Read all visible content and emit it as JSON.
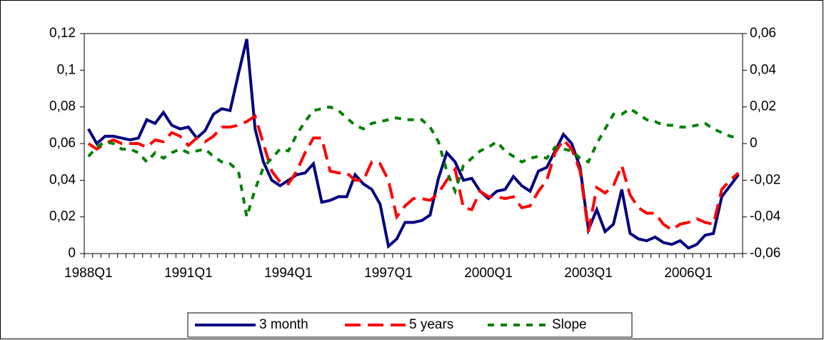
{
  "chart_data": {
    "type": "line",
    "categories": [
      "1988Q1",
      null,
      null,
      null,
      null,
      null,
      null,
      null,
      null,
      null,
      null,
      null,
      "1991Q1",
      null,
      null,
      null,
      null,
      null,
      null,
      null,
      null,
      null,
      null,
      null,
      "1994Q1",
      null,
      null,
      null,
      null,
      null,
      null,
      null,
      null,
      null,
      null,
      null,
      "1997Q1",
      null,
      null,
      null,
      null,
      null,
      null,
      null,
      null,
      null,
      null,
      null,
      "2000Q1",
      null,
      null,
      null,
      null,
      null,
      null,
      null,
      null,
      null,
      null,
      null,
      "2003Q1",
      null,
      null,
      null,
      null,
      null,
      null,
      null,
      null,
      null,
      null,
      null,
      "2006Q1",
      null,
      null,
      null,
      null,
      null,
      null
    ],
    "series": [
      {
        "name": "3 month",
        "color": "#000080",
        "dash": "solid",
        "values": [
          0.068,
          0.06,
          0.064,
          0.064,
          0.063,
          0.062,
          0.063,
          0.073,
          0.071,
          0.077,
          0.07,
          0.068,
          0.069,
          0.063,
          0.067,
          0.076,
          0.079,
          0.078,
          0.098,
          0.117,
          0.068,
          0.05,
          0.04,
          0.037,
          0.04,
          0.043,
          0.044,
          0.049,
          0.028,
          0.029,
          0.031,
          0.031,
          0.043,
          0.038,
          0.035,
          0.027,
          0.004,
          0.008,
          0.017,
          0.017,
          0.018,
          0.021,
          0.041,
          0.055,
          0.05,
          0.04,
          0.041,
          0.034,
          0.03,
          0.034,
          0.035,
          0.042,
          0.037,
          0.034,
          0.045,
          0.047,
          0.056,
          0.065,
          0.06,
          0.047,
          0.013,
          0.024,
          0.012,
          0.016,
          0.035,
          0.011,
          0.008,
          0.007,
          0.009,
          0.006,
          0.005,
          0.007,
          0.003,
          0.005,
          0.01,
          0.011,
          0.031,
          0.037,
          0.043
        ]
      },
      {
        "name": "5 years",
        "color": "#ff0000",
        "dash": "long",
        "values": [
          0.06,
          0.057,
          0.06,
          0.062,
          0.06,
          0.06,
          0.06,
          0.058,
          0.062,
          0.061,
          0.066,
          0.064,
          0.059,
          0.063,
          0.061,
          0.064,
          0.069,
          0.069,
          0.07,
          0.072,
          0.075,
          0.06,
          0.045,
          0.039,
          0.038,
          0.045,
          0.055,
          0.063,
          0.063,
          0.045,
          0.044,
          0.044,
          0.04,
          0.04,
          0.05,
          0.049,
          0.04,
          0.02,
          0.026,
          0.03,
          0.03,
          0.029,
          0.033,
          0.04,
          0.046,
          0.025,
          0.024,
          0.034,
          0.031,
          0.031,
          0.03,
          0.031,
          0.025,
          0.026,
          0.034,
          0.04,
          0.055,
          0.062,
          0.057,
          0.045,
          0.012,
          0.036,
          0.033,
          0.037,
          0.048,
          0.032,
          0.025,
          0.022,
          0.022,
          0.016,
          0.013,
          0.016,
          0.017,
          0.019,
          0.017,
          0.016,
          0.035,
          0.04,
          0.044
        ]
      },
      {
        "name": "Slope",
        "color": "#008000",
        "dash": "short",
        "axis": "y2",
        "values": [
          -0.007,
          -0.002,
          0.001,
          0,
          -0.003,
          -0.003,
          -0.005,
          -0.01,
          -0.005,
          -0.008,
          -0.005,
          -0.003,
          -0.005,
          -0.004,
          -0.003,
          -0.007,
          -0.01,
          -0.011,
          -0.015,
          -0.04,
          -0.025,
          -0.013,
          -0.008,
          -0.003,
          -0.004,
          0.005,
          0.012,
          0.018,
          0.019,
          0.02,
          0.018,
          0.014,
          0.01,
          0.008,
          0.011,
          0.012,
          0.013,
          0.014,
          0.013,
          0.013,
          0.013,
          0.009,
          0.001,
          -0.015,
          -0.026,
          -0.012,
          -0.008,
          -0.004,
          -0.002,
          0.001,
          -0.004,
          -0.007,
          -0.01,
          -0.008,
          -0.007,
          -0.008,
          -0.002,
          -0.003,
          -0.004,
          -0.008,
          -0.01,
          0,
          0.008,
          0.016,
          0.016,
          0.019,
          0.016,
          0.013,
          0.012,
          0.01,
          0.01,
          0.009,
          0.009,
          0.01,
          0.011,
          0.008,
          0.006,
          0.004,
          0.003
        ]
      }
    ],
    "ylim": [
      0,
      0.12
    ],
    "yticks": [
      0,
      {
        "value": 0.02,
        "label": "0,02"
      },
      {
        "value": 0.04,
        "label": "0,04"
      },
      {
        "value": 0.06,
        "label": "0,06"
      },
      {
        "value": 0.08,
        "label": "0,08"
      },
      {
        "value": 0.1,
        "label": "0,1"
      },
      {
        "value": 0.12,
        "label": "0,12"
      }
    ],
    "y2lim": [
      -0.06,
      0.06
    ],
    "y2ticks": [
      {
        "value": -0.06,
        "label": "-0,06"
      },
      {
        "value": -0.04,
        "label": "-0,04"
      },
      {
        "value": -0.02,
        "label": "-0,02"
      },
      0,
      {
        "value": 0.02,
        "label": "0,02"
      },
      {
        "value": 0.04,
        "label": "0,04"
      },
      {
        "value": 0.06,
        "label": "0,06"
      }
    ],
    "grid": false,
    "legend": "bottom"
  }
}
